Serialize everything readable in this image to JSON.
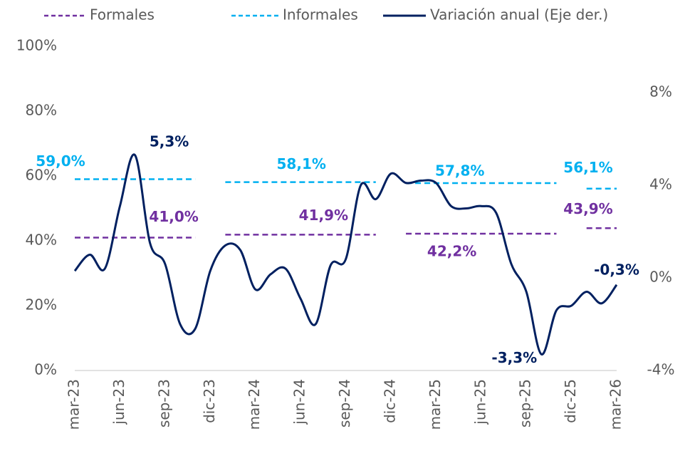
{
  "chart_data": {
    "type": "line",
    "categories": [
      "mar-23",
      null,
      null,
      "jun-23",
      null,
      null,
      "sep-23",
      null,
      null,
      "dic-23",
      null,
      null,
      "mar-24",
      null,
      null,
      "jun-24",
      null,
      null,
      "sep-24",
      null,
      null,
      "dic-24",
      null,
      null,
      "mar-25",
      null,
      null,
      "jun-25",
      null,
      null,
      "sep-25",
      null,
      null,
      "dic-25",
      null,
      null,
      "mar-26"
    ],
    "series": [
      {
        "name": "Formales",
        "color": "#7030a0",
        "dash": true,
        "values": [
          41.0,
          41.0,
          41.0,
          41.0,
          41.0,
          41.0,
          41.0,
          41.0,
          41.0,
          null,
          41.9,
          41.9,
          41.9,
          41.9,
          41.9,
          41.9,
          41.9,
          41.9,
          41.9,
          41.9,
          41.9,
          null,
          42.2,
          42.2,
          42.2,
          42.2,
          42.2,
          42.2,
          42.2,
          42.2,
          42.2,
          42.2,
          42.2,
          null,
          43.9,
          43.9,
          43.9
        ],
        "value_labels": [
          null,
          null,
          null,
          null,
          null,
          null,
          null,
          null,
          "41,0%",
          null,
          null,
          null,
          null,
          null,
          null,
          null,
          null,
          "41,9%",
          null,
          null,
          null,
          null,
          null,
          null,
          null,
          null,
          "42,2%",
          null,
          null,
          null,
          null,
          null,
          null,
          null,
          null,
          null,
          "43,9%"
        ]
      },
      {
        "name": "Informales",
        "color": "#00b0f0",
        "dash": true,
        "values": [
          59.0,
          59.0,
          59.0,
          59.0,
          59.0,
          59.0,
          59.0,
          59.0,
          59.0,
          null,
          58.1,
          58.1,
          58.1,
          58.1,
          58.1,
          58.1,
          58.1,
          58.1,
          58.1,
          58.1,
          58.1,
          null,
          57.8,
          57.8,
          57.8,
          57.8,
          57.8,
          57.8,
          57.8,
          57.8,
          57.8,
          57.8,
          57.8,
          null,
          56.1,
          56.1,
          56.1
        ],
        "value_labels": [
          "59,0%",
          null,
          null,
          null,
          null,
          null,
          null,
          null,
          null,
          null,
          null,
          null,
          null,
          null,
          null,
          null,
          "58,1%",
          null,
          null,
          null,
          null,
          null,
          null,
          null,
          null,
          null,
          null,
          "57,8%",
          null,
          null,
          null,
          null,
          null,
          null,
          null,
          null,
          "56,1%"
        ]
      },
      {
        "name": "Variación anual (Eje der.)",
        "color": "#002060",
        "axis": "y2",
        "values": [
          0.3,
          1.0,
          0.4,
          3.1,
          5.3,
          1.5,
          0.6,
          -2.0,
          -2.2,
          0.3,
          1.4,
          1.2,
          -0.5,
          0.15,
          0.4,
          -0.9,
          -2.0,
          0.55,
          0.8,
          4.0,
          3.4,
          4.5,
          4.1,
          4.2,
          4.1,
          3.1,
          3.0,
          3.1,
          2.8,
          0.6,
          -0.6,
          -3.3,
          -1.4,
          -1.2,
          -0.6,
          -1.1,
          -0.3
        ],
        "value_labels": [
          null,
          null,
          null,
          null,
          "5,3%",
          null,
          null,
          null,
          null,
          null,
          null,
          null,
          null,
          null,
          null,
          null,
          null,
          null,
          null,
          null,
          null,
          null,
          null,
          null,
          null,
          null,
          null,
          null,
          null,
          null,
          null,
          "-3,3%",
          null,
          null,
          null,
          null,
          "-0,3%"
        ]
      }
    ],
    "ylim": [
      0,
      100
    ],
    "yticks": [
      {
        "value": 0,
        "label": "0%"
      },
      {
        "value": 20,
        "label": "20%"
      },
      {
        "value": 40,
        "label": "40%"
      },
      {
        "value": 60,
        "label": "60%"
      },
      {
        "value": 80,
        "label": "80%"
      },
      {
        "value": 100,
        "label": "100%"
      }
    ],
    "y2lim": [
      -4,
      10
    ],
    "y2ticks": [
      {
        "value": -4,
        "label": "-4%"
      },
      {
        "value": 0,
        "label": "0%"
      },
      {
        "value": 4,
        "label": "4%"
      },
      {
        "value": 8,
        "label": "8%"
      }
    ],
    "legend": "top",
    "grid": false
  }
}
